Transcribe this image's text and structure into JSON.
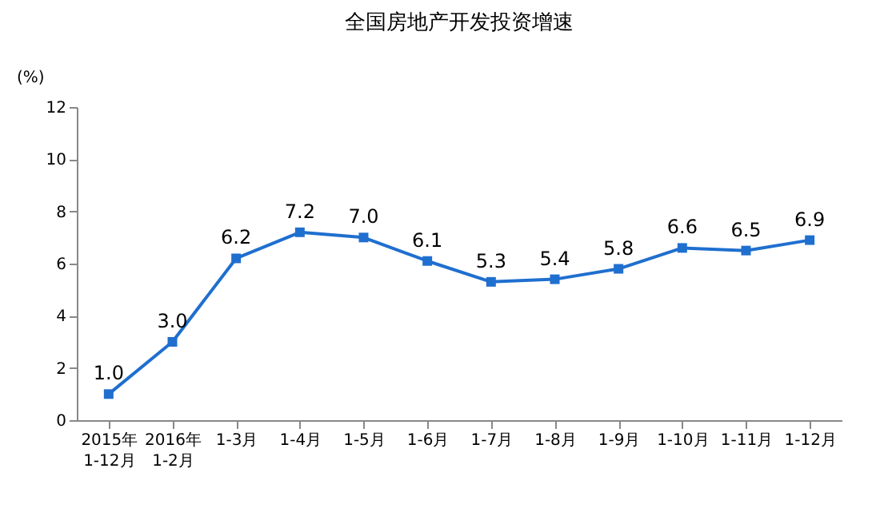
{
  "chart_data": {
    "type": "line",
    "title": "全国房地产开发投资增速",
    "ylabel": "(%)",
    "categories": [
      "2015年\n1-12月",
      "2016年\n1-2月",
      "1-3月",
      "1-4月",
      "1-5月",
      "1-6月",
      "1-7月",
      "1-8月",
      "1-9月",
      "1-10月",
      "1-11月",
      "1-12月"
    ],
    "series": [
      {
        "color": "#1f6fcf",
        "values": [
          1.0,
          3.0,
          6.2,
          7.2,
          7.0,
          6.1,
          5.3,
          5.4,
          5.8,
          6.6,
          6.5,
          6.9
        ],
        "value_labels": [
          "1.0",
          "3.0",
          "6.2",
          "7.2",
          "7.0",
          "6.1",
          "5.3",
          "5.4",
          "5.8",
          "6.6",
          "6.5",
          "6.9"
        ]
      }
    ],
    "ylim": [
      0,
      12
    ],
    "yticks": [
      0,
      2,
      4,
      6,
      8,
      10,
      12
    ],
    "grid": false,
    "marker": "square",
    "line_style": "solid"
  }
}
